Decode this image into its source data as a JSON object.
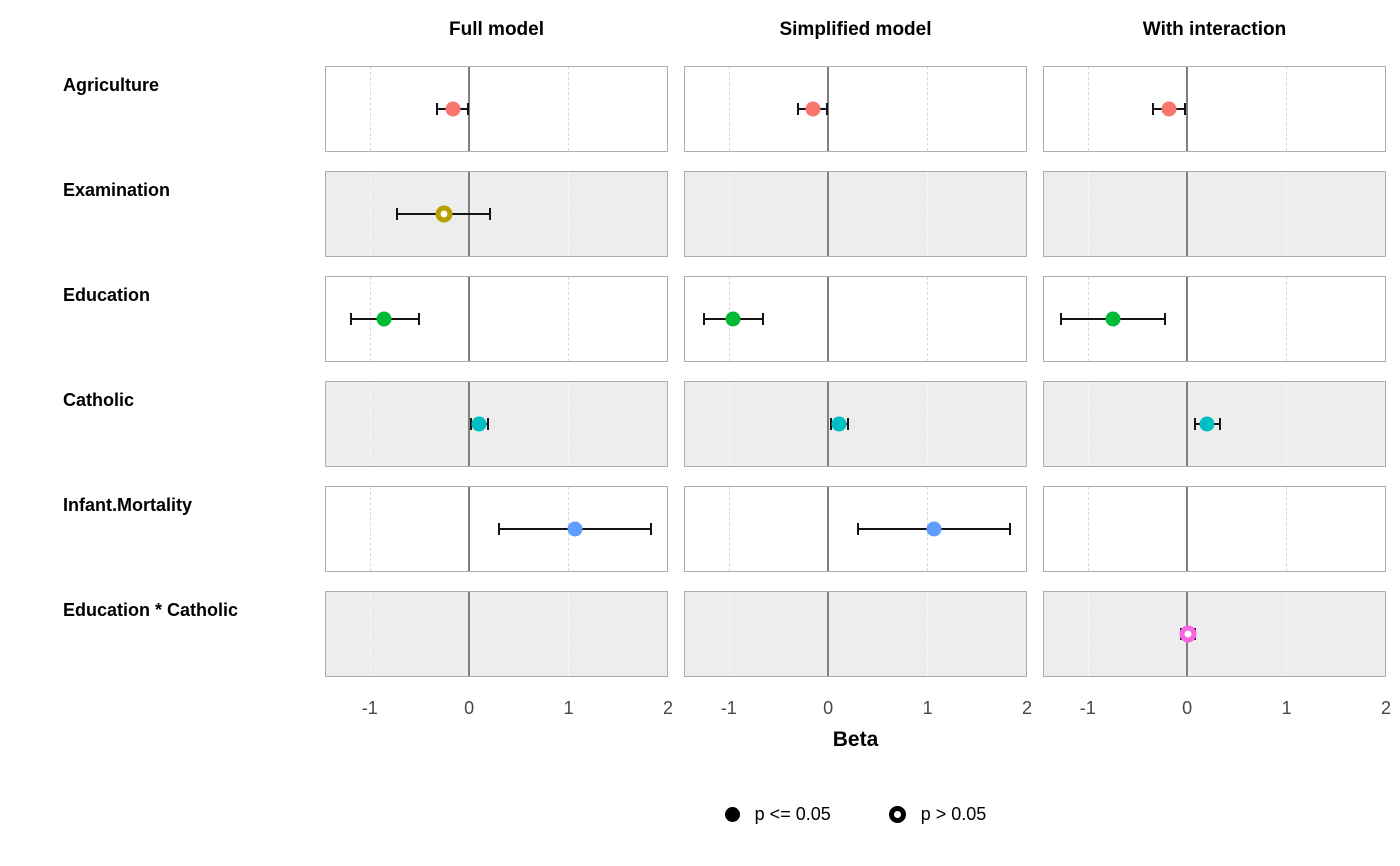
{
  "chart_data": {
    "type": "scatter",
    "variant": "coefficient-forest-plot",
    "title": "",
    "xlabel": "Beta",
    "ylabel": "",
    "xlim": [
      -1.45,
      2.0
    ],
    "x_ticks": [
      -1,
      0,
      1,
      2
    ],
    "zero_line": 0,
    "dashed_gridlines": [
      -1,
      1
    ],
    "grid": "dashed-vertical",
    "legend_position": "bottom-center",
    "facets": [
      "Full model",
      "Simplified model",
      "With interaction"
    ],
    "legend": {
      "items": [
        {
          "label": "p <= 0.05",
          "marker": "filled"
        },
        {
          "label": "p > 0.05",
          "marker": "open"
        }
      ]
    },
    "style": {
      "shaded_row_bg": "#EDEDED",
      "panel_border": "#ADADAD",
      "zero_line_color": "#7F7F7F",
      "dashed_line_color": "#D8D8D8",
      "errorbar_color": "#141414",
      "tick_label_color": "#474747",
      "legend_marker_color": "#000000"
    },
    "terms": [
      {
        "label": "Agriculture",
        "color": "#F8766D",
        "shaded": false,
        "estimates": [
          {
            "model": "Full model",
            "beta": -0.17,
            "ci_low": -0.33,
            "ci_high": -0.01,
            "significant": true
          },
          {
            "model": "Simplified model",
            "beta": -0.16,
            "ci_low": -0.31,
            "ci_high": -0.01,
            "significant": true
          },
          {
            "model": "With interaction",
            "beta": -0.19,
            "ci_low": -0.35,
            "ci_high": -0.02,
            "significant": true
          }
        ]
      },
      {
        "label": "Examination",
        "color": "#B79F00",
        "shaded": true,
        "estimates": [
          {
            "model": "Full model",
            "beta": -0.26,
            "ci_low": -0.73,
            "ci_high": 0.21,
            "significant": false
          }
        ]
      },
      {
        "label": "Education",
        "color": "#00BA38",
        "shaded": false,
        "estimates": [
          {
            "model": "Full model",
            "beta": -0.86,
            "ci_low": -1.2,
            "ci_high": -0.51,
            "significant": true
          },
          {
            "model": "Simplified model",
            "beta": -0.96,
            "ci_low": -1.26,
            "ci_high": -0.66,
            "significant": true
          },
          {
            "model": "With interaction",
            "beta": -0.75,
            "ci_low": -1.28,
            "ci_high": -0.23,
            "significant": true
          }
        ]
      },
      {
        "label": "Catholic",
        "color": "#00BFC4",
        "shaded": true,
        "estimates": [
          {
            "model": "Full model",
            "beta": 0.1,
            "ci_low": 0.02,
            "ci_high": 0.19,
            "significant": true
          },
          {
            "model": "Simplified model",
            "beta": 0.11,
            "ci_low": 0.03,
            "ci_high": 0.2,
            "significant": true
          },
          {
            "model": "With interaction",
            "beta": 0.2,
            "ci_low": 0.08,
            "ci_high": 0.33,
            "significant": true
          }
        ]
      },
      {
        "label": "Infant.Mortality",
        "color": "#619CFF",
        "shaded": false,
        "estimates": [
          {
            "model": "Full model",
            "beta": 1.07,
            "ci_low": 0.3,
            "ci_high": 1.84,
            "significant": true
          },
          {
            "model": "Simplified model",
            "beta": 1.07,
            "ci_low": 0.3,
            "ci_high": 1.84,
            "significant": true
          }
        ]
      },
      {
        "label": "Education * Catholic",
        "color": "#F564E2",
        "shaded": true,
        "estimates": [
          {
            "model": "With interaction",
            "beta": 0.01,
            "ci_low": -0.06,
            "ci_high": 0.08,
            "significant": false
          }
        ]
      }
    ]
  }
}
